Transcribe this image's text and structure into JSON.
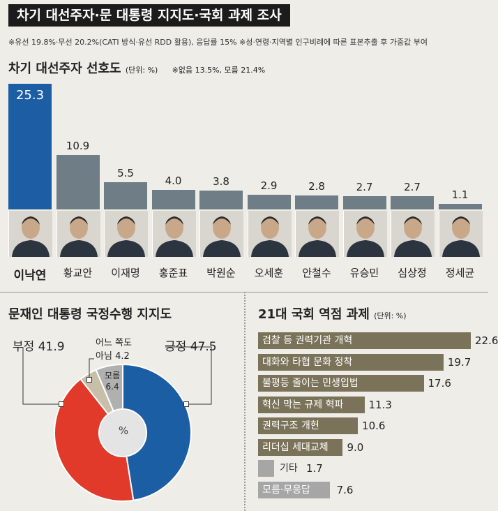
{
  "title": "차기 대선주자·문 대통령 지지도·국회 과제 조사",
  "note": "※유선 19.8%·무선 20.2%(CATI 방식·유선 RDD 활용), 응답률 15%  ※성·연령·지역별 인구비례에 따른 표본추출 후 가중값 부여",
  "chart_data": [
    {
      "type": "bar",
      "title": "차기 대선주자 선호도",
      "unit": "(단위: %)",
      "subtitle": "※없음 13.5%, 모름 21.4%",
      "categories": [
        "이낙연",
        "황교안",
        "이재명",
        "홍준표",
        "박원순",
        "오세훈",
        "안철수",
        "유승민",
        "심상정",
        "정세균"
      ],
      "values": [
        25.3,
        10.9,
        5.5,
        4.0,
        3.8,
        2.9,
        2.8,
        2.7,
        2.7,
        1.1
      ],
      "value_labels": [
        "25.3",
        "10.9",
        "5.5",
        "4.0",
        "3.8",
        "2.9",
        "2.8",
        "2.7",
        "2.7",
        "1.1"
      ],
      "colors": {
        "highlight": "#1d5da3",
        "default": "#6f7e86"
      }
    },
    {
      "type": "pie",
      "title": "문재인 대통령 국정수행 지지도",
      "center_label": "%",
      "slices": [
        {
          "label": "긍정",
          "value": 47.5,
          "value_label": "47.5",
          "color": "#1c5ea4"
        },
        {
          "label": "부정",
          "value": 41.9,
          "value_label": "41.9",
          "color": "#e13a2b"
        },
        {
          "label": "어느 쪽도 아님",
          "label_line1": "어느 쪽도",
          "label_line2": "아님",
          "value": 4.2,
          "value_label": "4.2",
          "color": "#c7bfa7"
        },
        {
          "label": "모름",
          "value": 6.4,
          "value_label": "6.4",
          "color": "#b0b0b0"
        }
      ]
    },
    {
      "type": "bar",
      "orientation": "horizontal",
      "title": "21대 국회 역점 과제",
      "unit": "(단위: %)",
      "categories": [
        "검찰 등 권력기관 개혁",
        "대화와 타협 문화 정착",
        "불평등 줄이는 민생입법",
        "혁신 막는 규제 혁파",
        "권력구조 개헌",
        "리더십 세대교체",
        "기타",
        "모름·무응답"
      ],
      "values": [
        22.6,
        19.7,
        17.6,
        11.3,
        10.6,
        9.0,
        1.7,
        7.6
      ],
      "value_labels": [
        "22.6",
        "19.7",
        "17.6",
        "11.3",
        "10.6",
        "9.0",
        "1.7",
        "7.6"
      ],
      "colors": {
        "main": "#7b7359",
        "other": "#a6a6a6"
      }
    }
  ]
}
